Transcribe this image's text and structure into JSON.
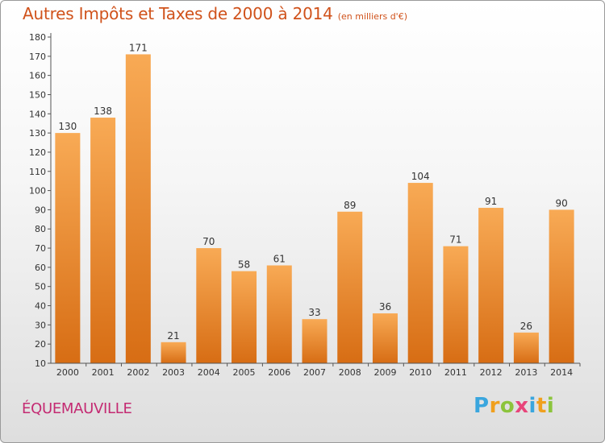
{
  "title": "Autres Impôts et Taxes de 2000 à 2014",
  "unit_note": "(en milliers d'€)",
  "town": "ÉQUEMAUVILLE",
  "logo": {
    "letters": [
      "P",
      "r",
      "o",
      "x",
      "i",
      "t",
      "i"
    ],
    "colors": [
      "#3aa6de",
      "#f0a01e",
      "#8cc43c",
      "#e8457a",
      "#3aa6de",
      "#f0a01e",
      "#8cc43c"
    ]
  },
  "colors": {
    "bar_top": "#f8aa55",
    "bar_bottom": "#d76d14",
    "title": "#d0521b",
    "town": "#c42a72"
  },
  "chart_data": {
    "type": "bar",
    "categories": [
      "2000",
      "2001",
      "2002",
      "2003",
      "2004",
      "2005",
      "2006",
      "2007",
      "2008",
      "2009",
      "2010",
      "2011",
      "2012",
      "2013",
      "2014"
    ],
    "values": [
      130,
      138,
      171,
      21,
      70,
      58,
      61,
      33,
      89,
      36,
      104,
      71,
      91,
      26,
      90
    ],
    "ylim": [
      10,
      180
    ],
    "yticks": [
      10,
      20,
      30,
      40,
      50,
      60,
      70,
      80,
      90,
      100,
      110,
      120,
      130,
      140,
      150,
      160,
      170,
      180
    ],
    "grid": false
  }
}
